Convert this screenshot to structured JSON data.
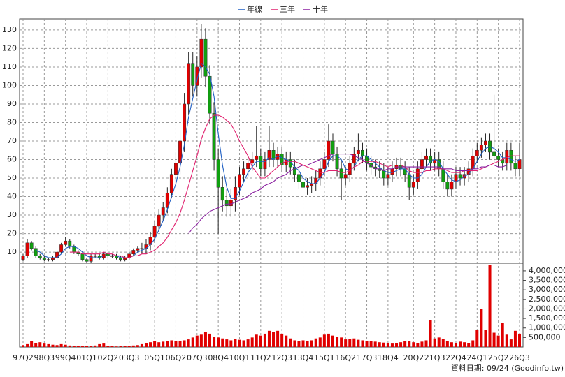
{
  "chart_data": {
    "type": "candlestick",
    "legend": "top",
    "grid": true,
    "note": "資料日期: 09/24 (Goodinfo.tw)",
    "up_color": "#e00000",
    "down_color": "#10a010",
    "categories": [
      "97Q2",
      null,
      null,
      null,
      null,
      "98Q3",
      null,
      null,
      null,
      null,
      "99Q4",
      null,
      null,
      null,
      null,
      "01Q1",
      null,
      null,
      null,
      null,
      "02Q2",
      null,
      null,
      null,
      null,
      "03Q3",
      null,
      null,
      null,
      null,
      null,
      "05Q1",
      null,
      null,
      null,
      null,
      "06Q2",
      null,
      null,
      null,
      null,
      "07Q3",
      null,
      null,
      null,
      null,
      "08Q4",
      null,
      null,
      null,
      null,
      "10Q1",
      null,
      null,
      null,
      null,
      "11Q2",
      null,
      null,
      null,
      null,
      "12Q3",
      null,
      null,
      null,
      null,
      "13Q4",
      null,
      null,
      null,
      null,
      "15Q1",
      null,
      null,
      null,
      null,
      "16Q2",
      null,
      null,
      null,
      null,
      "17Q3",
      null,
      null,
      null,
      null,
      "18Q4",
      null,
      null,
      null,
      null,
      null,
      "20Q2",
      null,
      null,
      null,
      null,
      "21Q3",
      null,
      null,
      null,
      null,
      "22Q4",
      null,
      null,
      null,
      null,
      "24Q1",
      null,
      null,
      null,
      null,
      "25Q2",
      null,
      null,
      null,
      null,
      "26Q3"
    ],
    "open": [
      6,
      8,
      15,
      12,
      8,
      7,
      6,
      6,
      7,
      10,
      14,
      16,
      13,
      10,
      9,
      6,
      5,
      8,
      8,
      7,
      9,
      8,
      8,
      7,
      6,
      7,
      9,
      11,
      12,
      12,
      14,
      18,
      24,
      30,
      34,
      42,
      52,
      58,
      70,
      90,
      112,
      100,
      110,
      125,
      105,
      85,
      60,
      45,
      38,
      35,
      38,
      45,
      52,
      55,
      58,
      60,
      62,
      55,
      60,
      65,
      60,
      63,
      57,
      60,
      56,
      52,
      48,
      45,
      46,
      47,
      50,
      55,
      60,
      70,
      63,
      55,
      50,
      52,
      58,
      63,
      65,
      62,
      58,
      56,
      55,
      54,
      50,
      52,
      55,
      57,
      55,
      52,
      45,
      48,
      55,
      60,
      62,
      58,
      60,
      55,
      48,
      44,
      48,
      52,
      50,
      52,
      55,
      62,
      65,
      68,
      70,
      64,
      62,
      60,
      58,
      65,
      58,
      55
    ],
    "high": [
      9,
      17,
      16,
      13,
      9,
      8,
      7,
      8,
      11,
      15,
      18,
      17,
      14,
      11,
      10,
      7,
      9,
      9,
      9,
      10,
      10,
      9,
      9,
      8,
      8,
      10,
      12,
      13,
      15,
      17,
      21,
      27,
      33,
      37,
      45,
      55,
      64,
      76,
      96,
      118,
      118,
      116,
      133,
      131,
      111,
      91,
      66,
      51,
      44,
      44,
      51,
      56,
      59,
      62,
      64,
      78,
      66,
      64,
      78,
      69,
      67,
      67,
      64,
      64,
      60,
      56,
      52,
      50,
      51,
      54,
      59,
      64,
      79,
      74,
      67,
      59,
      56,
      62,
      67,
      74,
      69,
      66,
      62,
      60,
      59,
      58,
      56,
      59,
      61,
      61,
      59,
      56,
      52,
      59,
      64,
      66,
      66,
      64,
      64,
      59,
      52,
      52,
      56,
      56,
      56,
      59,
      66,
      69,
      72,
      74,
      74,
      95,
      66,
      64,
      69,
      69,
      62,
      69
    ],
    "low": [
      5,
      7,
      11,
      7,
      6,
      5,
      5,
      5,
      6,
      9,
      13,
      12,
      9,
      8,
      5,
      4,
      4,
      7,
      6,
      6,
      7,
      7,
      6,
      5,
      5,
      6,
      8,
      10,
      9,
      9,
      11,
      15,
      21,
      27,
      31,
      39,
      46,
      52,
      64,
      84,
      94,
      94,
      104,
      99,
      79,
      54,
      20,
      32,
      29,
      29,
      32,
      41,
      48,
      51,
      54,
      56,
      51,
      51,
      56,
      56,
      56,
      53,
      53,
      52,
      48,
      44,
      41,
      41,
      42,
      43,
      46,
      51,
      56,
      59,
      51,
      38,
      46,
      48,
      54,
      59,
      58,
      54,
      52,
      51,
      50,
      46,
      46,
      48,
      51,
      51,
      48,
      38,
      41,
      44,
      51,
      56,
      54,
      54,
      51,
      44,
      40,
      40,
      44,
      46,
      46,
      48,
      51,
      58,
      61,
      64,
      60,
      58,
      56,
      54,
      54,
      54,
      51,
      51
    ],
    "close": [
      8,
      15,
      12,
      8,
      7,
      6,
      6,
      7,
      10,
      14,
      16,
      13,
      10,
      9,
      6,
      5,
      8,
      8,
      7,
      9,
      8,
      8,
      7,
      6,
      7,
      9,
      11,
      12,
      12,
      14,
      18,
      24,
      30,
      34,
      42,
      52,
      58,
      70,
      90,
      112,
      100,
      110,
      125,
      105,
      85,
      60,
      45,
      38,
      35,
      38,
      45,
      52,
      55,
      58,
      60,
      62,
      55,
      60,
      65,
      60,
      63,
      57,
      60,
      56,
      52,
      48,
      45,
      46,
      47,
      50,
      55,
      60,
      70,
      63,
      55,
      50,
      52,
      58,
      63,
      65,
      62,
      58,
      56,
      55,
      54,
      50,
      52,
      55,
      57,
      55,
      52,
      45,
      48,
      55,
      60,
      62,
      58,
      60,
      55,
      48,
      44,
      48,
      52,
      50,
      52,
      55,
      62,
      65,
      68,
      70,
      64,
      62,
      60,
      58,
      65,
      58,
      55,
      60
    ],
    "ylim": [
      4,
      136
    ],
    "yticks": [
      10,
      20,
      30,
      40,
      50,
      60,
      70,
      80,
      90,
      100,
      110,
      120,
      130
    ],
    "lines": [
      {
        "name": "年線",
        "color": "#1f5fc4",
        "values": [
          null,
          null,
          null,
          11,
          10,
          8,
          7,
          7,
          7,
          9,
          12,
          13,
          13,
          12,
          10,
          8,
          7,
          7,
          7,
          8,
          8,
          8,
          8,
          7,
          7,
          7,
          8,
          10,
          11,
          12,
          14,
          17,
          22,
          27,
          33,
          40,
          47,
          56,
          68,
          83,
          93,
          103,
          112,
          110,
          106,
          94,
          74,
          57,
          45,
          39,
          39,
          43,
          48,
          53,
          56,
          59,
          59,
          59,
          61,
          60,
          62,
          61,
          60,
          59,
          56,
          54,
          50,
          48,
          47,
          47,
          50,
          53,
          59,
          62,
          62,
          60,
          55,
          54,
          56,
          60,
          62,
          62,
          60,
          58,
          56,
          54,
          53,
          53,
          54,
          55,
          55,
          52,
          50,
          50,
          52,
          56,
          59,
          60,
          59,
          55,
          52,
          49,
          48,
          49,
          51,
          52,
          55,
          59,
          63,
          66,
          67,
          66,
          64,
          61,
          61,
          60,
          59,
          60
        ]
      },
      {
        "name": "三年",
        "color": "#e0206e",
        "values": [
          null,
          null,
          null,
          null,
          null,
          null,
          null,
          null,
          null,
          null,
          null,
          10,
          10,
          10,
          9,
          9,
          9,
          9,
          9,
          10,
          9,
          9,
          8,
          8,
          7,
          7,
          8,
          8,
          9,
          9,
          10,
          11,
          13,
          15,
          18,
          22,
          26,
          31,
          38,
          46,
          54,
          62,
          71,
          77,
          82,
          84,
          84,
          83,
          81,
          79,
          75,
          70,
          66,
          62,
          56,
          53,
          50,
          50,
          52,
          54,
          56,
          58,
          59,
          59,
          59,
          58,
          57,
          56,
          55,
          54,
          53,
          53,
          54,
          54,
          54,
          53,
          53,
          54,
          56,
          57,
          59,
          59,
          59,
          59,
          58,
          57,
          56,
          57,
          57,
          57,
          56,
          54,
          53,
          53,
          53,
          54,
          54,
          55,
          55,
          55,
          54,
          53,
          53,
          53,
          54,
          54,
          54,
          54,
          55,
          56,
          57,
          58,
          59,
          60,
          61,
          62,
          62,
          62
        ]
      },
      {
        "name": "十年",
        "color": "#8a1fa0",
        "values": [
          null,
          null,
          null,
          null,
          null,
          null,
          null,
          null,
          null,
          null,
          null,
          null,
          null,
          null,
          null,
          null,
          null,
          null,
          null,
          null,
          null,
          null,
          null,
          null,
          null,
          null,
          null,
          null,
          null,
          null,
          null,
          null,
          null,
          null,
          null,
          null,
          null,
          null,
          null,
          20,
          23,
          25,
          28,
          30,
          32,
          33,
          34,
          35,
          36,
          36,
          37,
          38,
          39,
          40,
          42,
          43,
          44,
          46,
          47,
          48,
          50,
          51,
          52,
          54,
          55,
          56,
          57,
          57,
          58,
          59,
          60,
          61,
          62,
          63,
          63,
          63,
          63,
          63,
          62,
          61,
          60,
          58,
          57,
          55,
          55,
          54,
          55,
          55,
          56,
          56,
          56,
          56,
          56,
          56,
          56,
          56,
          56,
          56,
          56,
          55,
          55,
          55,
          54,
          54,
          54,
          54,
          55,
          55,
          56,
          56,
          57,
          57,
          56,
          56,
          57,
          57,
          57,
          57
        ]
      }
    ],
    "volume": {
      "axis": "y2",
      "color": "#e00000",
      "values": [
        100000,
        150000,
        300000,
        200000,
        250000,
        180000,
        150000,
        120000,
        100000,
        150000,
        120000,
        80000,
        60000,
        50000,
        40000,
        50000,
        60000,
        80000,
        150000,
        180000,
        50000,
        40000,
        30000,
        40000,
        50000,
        60000,
        80000,
        100000,
        150000,
        200000,
        250000,
        300000,
        250000,
        280000,
        300000,
        350000,
        300000,
        320000,
        350000,
        400000,
        500000,
        600000,
        650000,
        800000,
        700000,
        550000,
        500000,
        450000,
        400000,
        350000,
        420000,
        380000,
        350000,
        400000,
        500000,
        650000,
        600000,
        700000,
        850000,
        800000,
        850000,
        700000,
        600000,
        450000,
        350000,
        300000,
        350000,
        300000,
        350000,
        450000,
        500000,
        650000,
        700000,
        600000,
        550000,
        500000,
        400000,
        420000,
        450000,
        380000,
        350000,
        300000,
        320000,
        280000,
        250000,
        230000,
        200000,
        180000,
        220000,
        250000,
        300000,
        320000,
        250000,
        200000,
        280000,
        350000,
        1400000,
        450000,
        500000,
        420000,
        300000,
        250000,
        200000,
        280000,
        250000,
        200000,
        350000,
        880000,
        2000000,
        900000,
        4300000,
        750000,
        600000,
        1250000,
        650000,
        400000,
        850000,
        700000
      ]
    },
    "y2lim": [
      0,
      4400000
    ],
    "y2ticks": [
      {
        "value": 500000,
        "label": "500,000"
      },
      {
        "value": 1000000,
        "label": "1,000,000"
      },
      {
        "value": 1500000,
        "label": "1,500,000"
      },
      {
        "value": 2000000,
        "label": "2,000,000"
      },
      {
        "value": 2500000,
        "label": "2,500,000"
      },
      {
        "value": 3000000,
        "label": "3,000,000"
      },
      {
        "value": 3500000,
        "label": "3,500,000"
      },
      {
        "value": 4000000,
        "label": "4,000,000"
      }
    ]
  }
}
